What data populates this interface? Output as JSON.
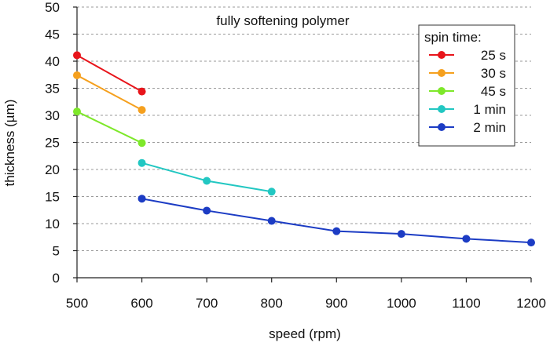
{
  "chart_data": {
    "type": "line",
    "title": "fully softening polymer",
    "xlabel": "speed (rpm)",
    "ylabel": "thickness (µm)",
    "xlim": [
      500,
      1200
    ],
    "ylim": [
      0,
      50
    ],
    "xticks": [
      500,
      600,
      700,
      800,
      900,
      1000,
      1100,
      1200
    ],
    "yticks": [
      0,
      5,
      10,
      15,
      20,
      25,
      30,
      35,
      40,
      45,
      50
    ],
    "grid": "horizontal dashed",
    "legend": {
      "title": "spin time:",
      "placement": "top-right"
    },
    "series": [
      {
        "name": "25 s",
        "color": "#e8151b",
        "x": [
          500,
          600
        ],
        "y": [
          41.1,
          34.4
        ]
      },
      {
        "name": "30 s",
        "color": "#f5a01e",
        "x": [
          500,
          600
        ],
        "y": [
          37.4,
          31.0
        ]
      },
      {
        "name": "45 s",
        "color": "#7ee82a",
        "x": [
          500,
          600
        ],
        "y": [
          30.7,
          24.9
        ]
      },
      {
        "name": "1 min",
        "color": "#22c7c2",
        "x": [
          600,
          700,
          800
        ],
        "y": [
          21.2,
          17.9,
          15.9
        ]
      },
      {
        "name": "2 min",
        "color": "#1c3cc4",
        "x": [
          600,
          700,
          800,
          900,
          1000,
          1100,
          1200
        ],
        "y": [
          14.6,
          12.4,
          10.5,
          8.6,
          8.1,
          7.2,
          6.5
        ]
      }
    ]
  }
}
